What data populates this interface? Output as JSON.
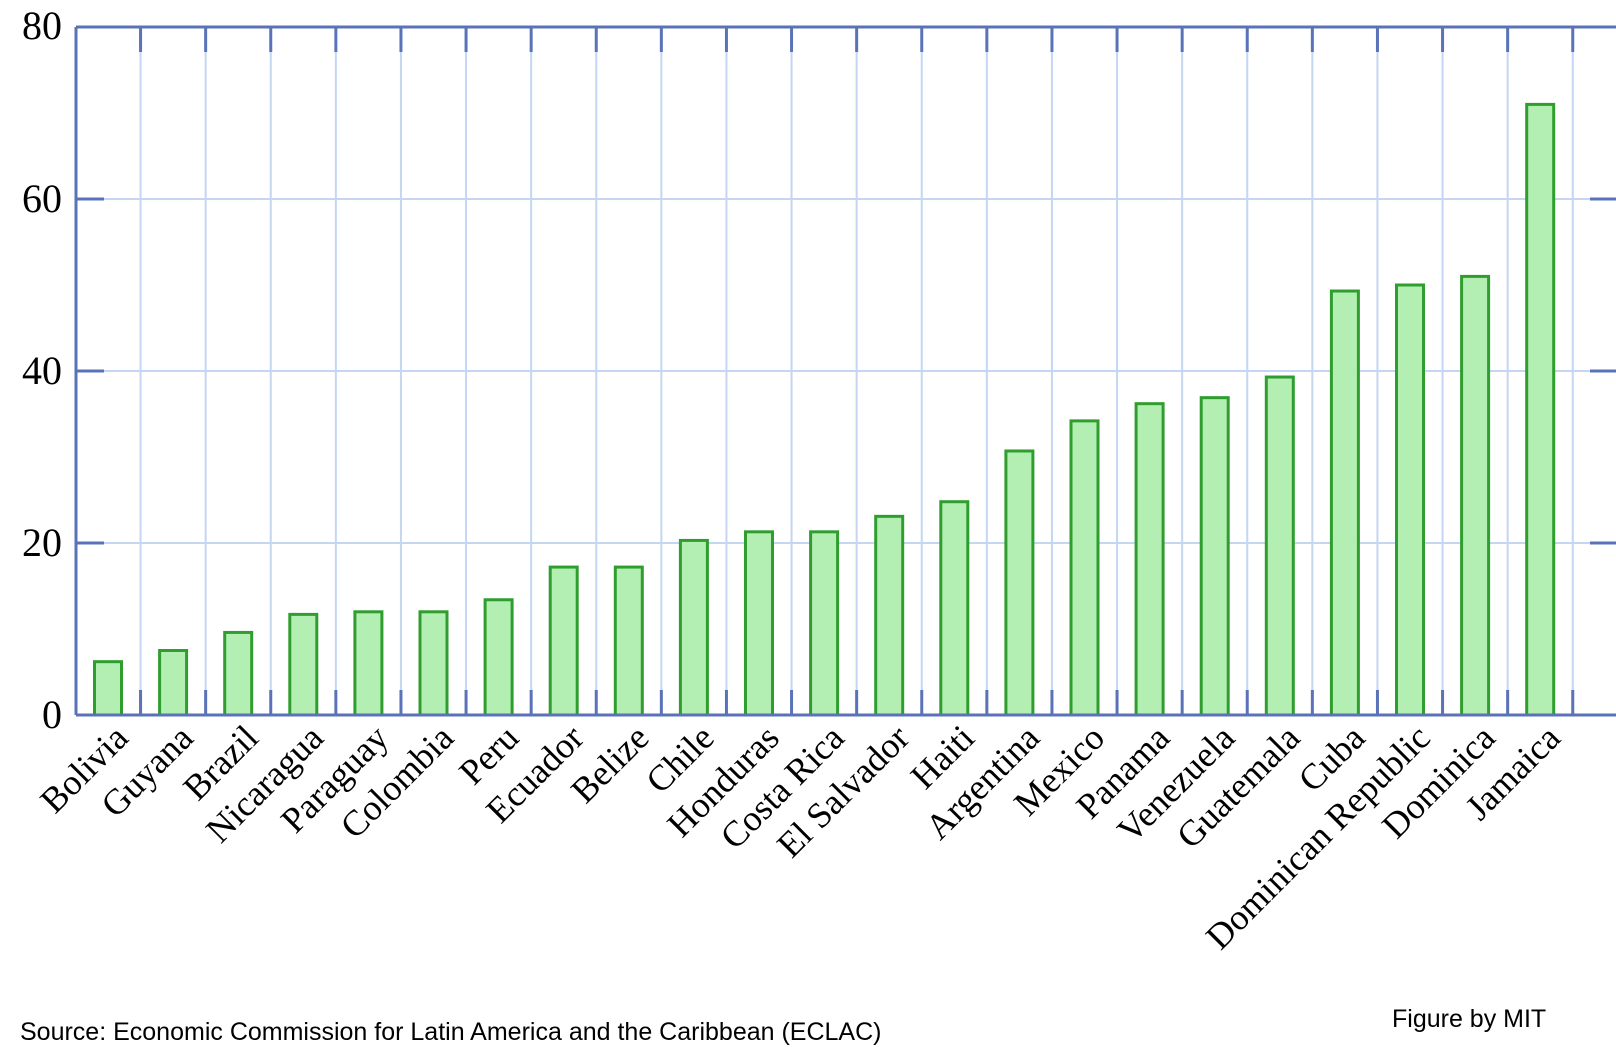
{
  "chart_data": {
    "type": "bar",
    "title": "",
    "xlabel": "",
    "ylabel": "",
    "ylim": [
      0,
      80
    ],
    "yticks": [
      0,
      20,
      40,
      60,
      80
    ],
    "grid": true,
    "categories": [
      "Bolivia",
      "Guyana",
      "Brazil",
      "Nicaragua",
      "Paraguay",
      "Colombia",
      "Peru",
      "Ecuador",
      "Belize",
      "Chile",
      "Honduras",
      "Costa Rica",
      "El Salvador",
      "Haiti",
      "Argentina",
      "Mexico",
      "Panama",
      "Venezuela",
      "Guatemala",
      "Cuba",
      "Dominican Republic",
      "Dominica",
      "Jamaica"
    ],
    "values": [
      6.2,
      7.5,
      9.6,
      11.7,
      12.0,
      12.0,
      13.4,
      17.2,
      17.2,
      20.3,
      21.3,
      21.3,
      23.1,
      24.8,
      30.7,
      34.2,
      36.2,
      36.9,
      39.3,
      49.3,
      50.0,
      51.0,
      71.0
    ],
    "colors": {
      "bar_fill": "#b3efb3",
      "bar_stroke": "#2f9e2f",
      "axis": "#5a72b8",
      "grid": "#c4d6f2"
    }
  },
  "notes": {
    "source": "Source: Economic Commission for Latin America and the Caribbean (ECLAC)",
    "credit": "Figure by MIT"
  }
}
